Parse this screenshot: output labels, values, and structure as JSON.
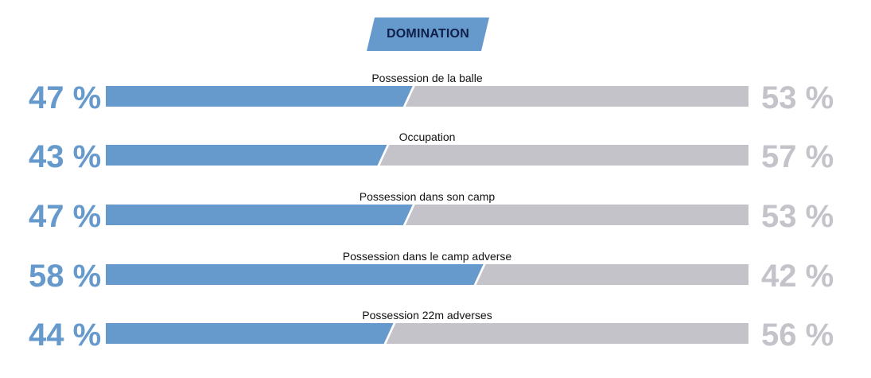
{
  "header": {
    "title": "DOMINATION",
    "badge_color": "#6699cc",
    "title_color": "#0f1f4a"
  },
  "colors": {
    "left_team": "#6699cc",
    "right_team": "#c4c3ca"
  },
  "rows": [
    {
      "label": "Possession de la balle",
      "left_text": "47 %",
      "right_text": "53 %"
    },
    {
      "label": "Occupation",
      "left_text": "43 %",
      "right_text": "57 %"
    },
    {
      "label": "Possession dans son camp",
      "left_text": "47 %",
      "right_text": "53 %"
    },
    {
      "label": "Possession dans le camp adverse",
      "left_text": "58 %",
      "right_text": "42 %"
    },
    {
      "label": "Possession 22m adverses",
      "left_text": "44 %",
      "right_text": "56 %"
    }
  ],
  "chart_data": {
    "type": "bar",
    "title": "DOMINATION",
    "categories": [
      "Possession de la balle",
      "Occupation",
      "Possession dans son camp",
      "Possession dans le camp adverse",
      "Possession 22m adverses"
    ],
    "series": [
      {
        "values": [
          47,
          43,
          47,
          58,
          44
        ]
      },
      {
        "values": [
          53,
          57,
          53,
          42,
          56
        ]
      }
    ],
    "ylim": [
      0,
      100
    ]
  }
}
